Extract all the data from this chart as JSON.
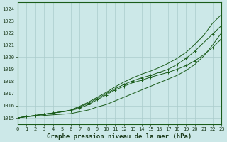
{
  "bg_color": "#cce8e8",
  "grid_color": "#aacccc",
  "line_color": "#1a5c1a",
  "xlabel": "Graphe pression niveau de la mer (hPa)",
  "xlim": [
    0,
    23
  ],
  "ylim": [
    1014.5,
    1024.5
  ],
  "yticks": [
    1015,
    1016,
    1017,
    1018,
    1019,
    1020,
    1021,
    1022,
    1023,
    1024
  ],
  "xticks": [
    0,
    1,
    2,
    3,
    4,
    5,
    6,
    7,
    8,
    9,
    10,
    11,
    12,
    13,
    14,
    15,
    16,
    17,
    18,
    19,
    20,
    21,
    22,
    23
  ],
  "series": [
    [
      1015.0,
      1015.1,
      1015.15,
      1015.2,
      1015.25,
      1015.3,
      1015.35,
      1015.5,
      1015.65,
      1015.9,
      1016.1,
      1016.4,
      1016.7,
      1017.0,
      1017.3,
      1017.6,
      1017.9,
      1018.2,
      1018.5,
      1018.9,
      1019.4,
      1020.1,
      1021.0,
      1022.0
    ],
    [
      1015.0,
      1015.1,
      1015.2,
      1015.3,
      1015.4,
      1015.5,
      1015.6,
      1015.8,
      1016.1,
      1016.5,
      1016.9,
      1017.3,
      1017.6,
      1017.9,
      1018.1,
      1018.35,
      1018.55,
      1018.75,
      1019.0,
      1019.3,
      1019.7,
      1020.2,
      1020.8,
      1021.5
    ],
    [
      1015.0,
      1015.1,
      1015.2,
      1015.3,
      1015.4,
      1015.5,
      1015.6,
      1015.9,
      1016.2,
      1016.6,
      1017.0,
      1017.4,
      1017.75,
      1018.05,
      1018.3,
      1018.5,
      1018.75,
      1019.0,
      1019.4,
      1019.9,
      1020.5,
      1021.2,
      1021.9,
      1022.6
    ],
    [
      1015.0,
      1015.1,
      1015.2,
      1015.3,
      1015.4,
      1015.5,
      1015.65,
      1015.95,
      1016.3,
      1016.7,
      1017.1,
      1017.55,
      1017.95,
      1018.3,
      1018.6,
      1018.85,
      1019.15,
      1019.5,
      1019.9,
      1020.4,
      1021.05,
      1021.8,
      1022.8,
      1023.5
    ]
  ],
  "series_markers": [
    false,
    true,
    true,
    false
  ],
  "marker_style": "+",
  "ylabel_fontsize": 5.5,
  "xlabel_fontsize": 6.5,
  "xtick_fontsize": 5.0,
  "ytick_fontsize": 5.0
}
